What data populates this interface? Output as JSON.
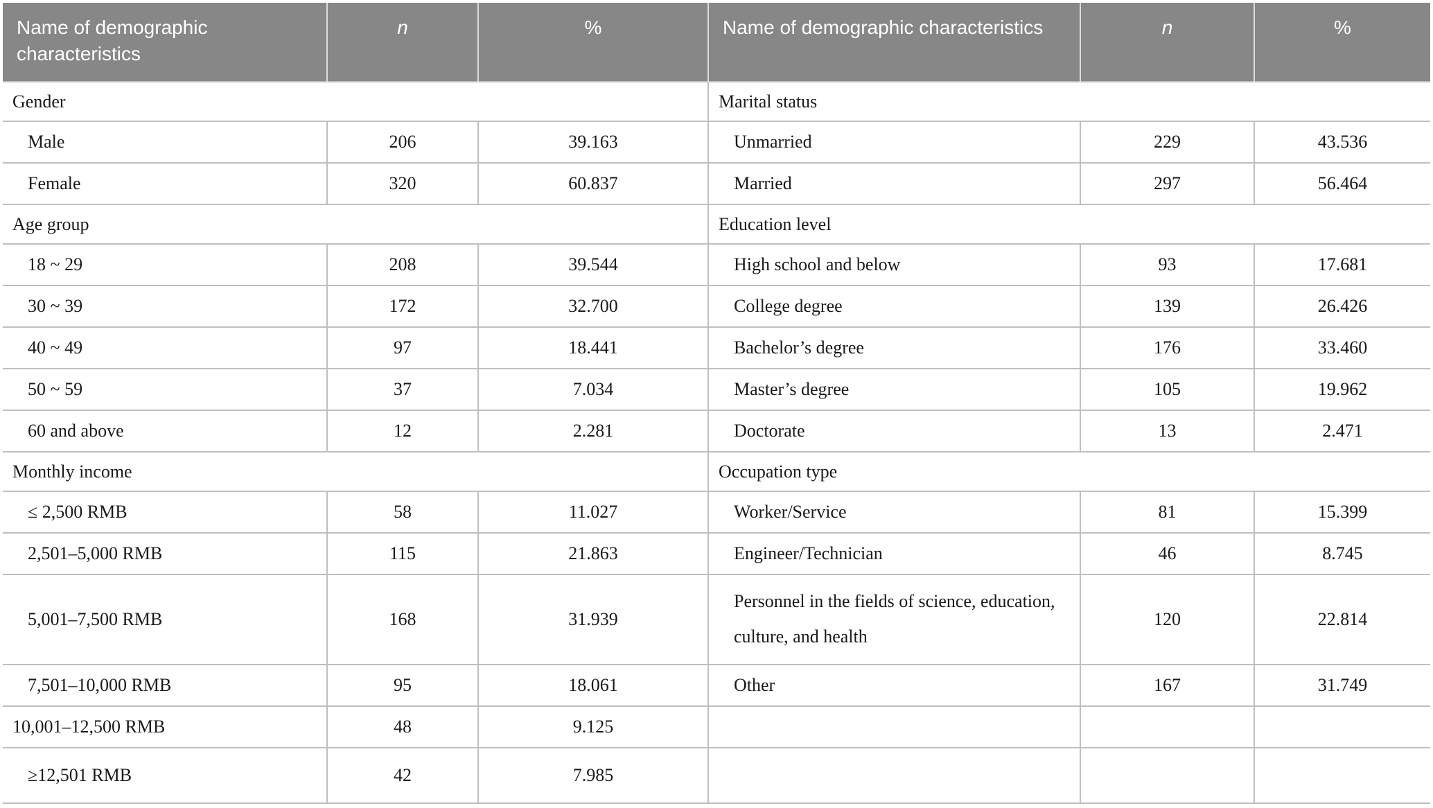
{
  "page": {
    "background": "#ffffff"
  },
  "table": {
    "columns": {
      "name_label": "Name of demographic characteristics",
      "n_label": "n",
      "pct_label": "%"
    },
    "colors": {
      "header_background": "#878787",
      "header_text": "#ffffff",
      "border": "#bfbfbf",
      "body_text": "#1a1a1a"
    },
    "rows": [
      {
        "type": "category",
        "left": {
          "label": "Gender"
        },
        "right": {
          "label": "Marital status"
        }
      },
      {
        "type": "data",
        "left": {
          "label": "Male",
          "n": "206",
          "pct": "39.163"
        },
        "right": {
          "label": "Unmarried",
          "n": "229",
          "pct": "43.536"
        }
      },
      {
        "type": "data",
        "left": {
          "label": "Female",
          "n": "320",
          "pct": "60.837"
        },
        "right": {
          "label": "Married",
          "n": "297",
          "pct": "56.464"
        }
      },
      {
        "type": "category",
        "left": {
          "label": "Age group"
        },
        "right": {
          "label": "Education level"
        }
      },
      {
        "type": "data",
        "left": {
          "label": "18 ~ 29",
          "n": "208",
          "pct": "39.544"
        },
        "right": {
          "label": "High school and below",
          "n": "93",
          "pct": "17.681"
        }
      },
      {
        "type": "data",
        "left": {
          "label": "30 ~ 39",
          "n": "172",
          "pct": "32.700"
        },
        "right": {
          "label": "College degree",
          "n": "139",
          "pct": "26.426"
        }
      },
      {
        "type": "data",
        "left": {
          "label": "40 ~ 49",
          "n": "97",
          "pct": "18.441"
        },
        "right": {
          "label": "Bachelor’s degree",
          "n": "176",
          "pct": "33.460"
        }
      },
      {
        "type": "data",
        "left": {
          "label": "50 ~ 59",
          "n": "37",
          "pct": "7.034"
        },
        "right": {
          "label": "Master’s degree",
          "n": "105",
          "pct": "19.962"
        }
      },
      {
        "type": "data",
        "left": {
          "label": "60 and above",
          "n": "12",
          "pct": "2.281"
        },
        "right": {
          "label": "Doctorate",
          "n": "13",
          "pct": "2.471"
        }
      },
      {
        "type": "category",
        "left": {
          "label": "Monthly income"
        },
        "right": {
          "label": "Occupation type"
        }
      },
      {
        "type": "data",
        "left": {
          "label": "≤ 2,500 RMB",
          "n": "58",
          "pct": "11.027"
        },
        "right": {
          "label": "Worker/Service",
          "n": "81",
          "pct": "15.399"
        }
      },
      {
        "type": "data",
        "left": {
          "label": "2,501–5,000 RMB",
          "n": "115",
          "pct": "21.863"
        },
        "right": {
          "label": "Engineer/Technician",
          "n": "46",
          "pct": "8.745"
        }
      },
      {
        "type": "data-tall",
        "left": {
          "label": "5,001–7,500 RMB",
          "n": "168",
          "pct": "31.939"
        },
        "right": {
          "label": "Personnel in the fields of science, education, culture, and health",
          "n": "120",
          "pct": "22.814"
        }
      },
      {
        "type": "data",
        "left": {
          "label": "7,501–10,000 RMB",
          "n": "95",
          "pct": "18.061"
        },
        "right": {
          "label": "Other",
          "n": "167",
          "pct": "31.749"
        }
      },
      {
        "type": "data",
        "left": {
          "label": "10,001–12,500 RMB",
          "n": "48",
          "pct": "9.125",
          "indent": false
        },
        "right": {
          "label": "",
          "n": "",
          "pct": ""
        }
      },
      {
        "type": "data-last",
        "left": {
          "label": "≥12,501 RMB",
          "n": "42",
          "pct": "7.985"
        },
        "right": {
          "label": "",
          "n": "",
          "pct": ""
        }
      }
    ]
  }
}
